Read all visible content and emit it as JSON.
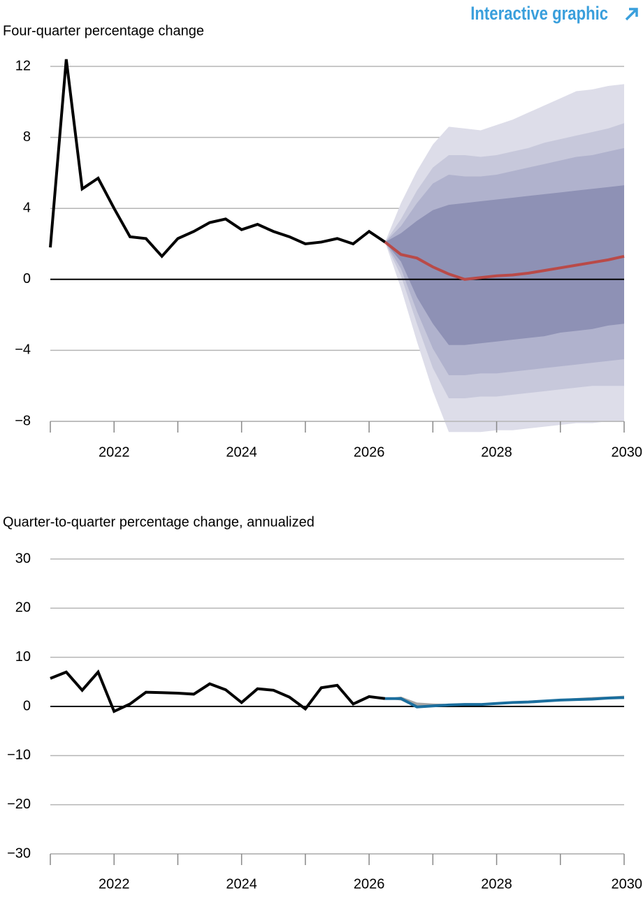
{
  "header": {
    "link": "Interactive graphic"
  },
  "chart_data": [
    {
      "type": "fan",
      "title": "Four-quarter percentage change",
      "xlim": [
        2021,
        2030
      ],
      "xticks": [
        2022,
        2024,
        2026,
        2028,
        2030
      ],
      "xminorticks": [
        2021,
        2023,
        2025,
        2027,
        2029
      ],
      "ylim": [
        -8,
        12
      ],
      "yticks": [
        12,
        8,
        4,
        0,
        {
          "value": -4,
          "label": "−4"
        },
        {
          "value": -8,
          "label": "−8"
        }
      ],
      "grid": true,
      "bands": [
        {
          "color": "#dddde9",
          "x": [
            2026.25,
            2026.5,
            2026.75,
            2027,
            2027.25,
            2027.5,
            2027.75,
            2028,
            2028.25,
            2028.5,
            2028.75,
            2029,
            2029.25,
            2029.5,
            2029.75,
            2030
          ],
          "upper": [
            2.1,
            4.3,
            6.1,
            7.6,
            8.6,
            8.5,
            8.4,
            8.7,
            9.0,
            9.4,
            9.8,
            10.2,
            10.6,
            10.7,
            10.9,
            11.0
          ],
          "lower": [
            2.1,
            -0.5,
            -3.5,
            -6.3,
            -8.6,
            -8.6,
            -8.6,
            -8.5,
            -8.5,
            -8.4,
            -8.3,
            -8.2,
            -8.1,
            -8.1,
            -8.0,
            -8.0
          ]
        },
        {
          "color": "#c7c8db",
          "x": [
            2026.25,
            2026.5,
            2026.75,
            2027,
            2027.25,
            2027.5,
            2027.75,
            2028,
            2028.25,
            2028.5,
            2028.75,
            2029,
            2029.25,
            2029.5,
            2029.75,
            2030
          ],
          "upper": [
            2.1,
            3.4,
            5.0,
            6.3,
            7.0,
            7.0,
            6.9,
            7.0,
            7.2,
            7.4,
            7.7,
            7.9,
            8.1,
            8.3,
            8.5,
            8.8
          ],
          "lower": [
            2.1,
            0.2,
            -2.5,
            -5.0,
            -6.7,
            -6.7,
            -6.6,
            -6.6,
            -6.5,
            -6.4,
            -6.3,
            -6.2,
            -6.1,
            -6.0,
            -6.0,
            -6.0
          ]
        },
        {
          "color": "#b0b2cd",
          "x": [
            2026.25,
            2026.5,
            2026.75,
            2027,
            2027.25,
            2027.5,
            2027.75,
            2028,
            2028.25,
            2028.5,
            2028.75,
            2029,
            2029.25,
            2029.5,
            2029.75,
            2030
          ],
          "upper": [
            2.1,
            3.0,
            4.3,
            5.4,
            5.9,
            5.8,
            5.8,
            5.9,
            6.1,
            6.3,
            6.5,
            6.7,
            6.9,
            7.0,
            7.2,
            7.4
          ],
          "lower": [
            2.1,
            0.6,
            -1.8,
            -3.9,
            -5.4,
            -5.4,
            -5.3,
            -5.3,
            -5.2,
            -5.1,
            -5.0,
            -4.9,
            -4.8,
            -4.7,
            -4.6,
            -4.5
          ]
        },
        {
          "color": "#8e91b5",
          "x": [
            2026.25,
            2026.5,
            2026.75,
            2027,
            2027.25,
            2027.5,
            2027.75,
            2028,
            2028.25,
            2028.5,
            2028.75,
            2029,
            2029.25,
            2029.5,
            2029.75,
            2030
          ],
          "upper": [
            2.1,
            2.6,
            3.3,
            3.9,
            4.2,
            4.3,
            4.4,
            4.5,
            4.6,
            4.7,
            4.8,
            4.9,
            5.0,
            5.1,
            5.2,
            5.3
          ],
          "lower": [
            2.1,
            1.0,
            -1.0,
            -2.5,
            -3.7,
            -3.7,
            -3.6,
            -3.5,
            -3.4,
            -3.3,
            -3.2,
            -3.0,
            -2.9,
            -2.8,
            -2.6,
            -2.5
          ]
        }
      ],
      "series": [
        {
          "color": "#000000",
          "x": [
            2021,
            2021.25,
            2021.5,
            2021.75,
            2022,
            2022.25,
            2022.5,
            2022.75,
            2023,
            2023.25,
            2023.5,
            2023.75,
            2024,
            2024.25,
            2024.5,
            2024.75,
            2025,
            2025.25,
            2025.5,
            2025.75,
            2026,
            2026.25
          ],
          "values": [
            1.8,
            12.4,
            5.1,
            5.7,
            4.0,
            2.4,
            2.3,
            1.3,
            2.3,
            2.7,
            3.2,
            3.4,
            2.8,
            3.1,
            2.7,
            2.4,
            2.0,
            2.1,
            2.3,
            2.0,
            2.7,
            2.1
          ]
        },
        {
          "color": "#b94a48",
          "x": [
            2026.25,
            2026.5,
            2026.75,
            2027,
            2027.25,
            2027.5,
            2027.75,
            2028,
            2028.25,
            2028.5,
            2028.75,
            2029,
            2029.25,
            2029.5,
            2029.75,
            2030
          ],
          "values": [
            2.1,
            1.4,
            1.2,
            0.7,
            0.3,
            0.0,
            0.1,
            0.2,
            0.25,
            0.35,
            0.5,
            0.65,
            0.8,
            0.95,
            1.1,
            1.3
          ]
        }
      ]
    },
    {
      "type": "fan",
      "title": "Quarter-to-quarter percentage change, annualized",
      "xlim": [
        2021,
        2030
      ],
      "xticks": [
        2022,
        2024,
        2026,
        2028,
        2030
      ],
      "xminorticks": [
        2021,
        2023,
        2025,
        2027,
        2029
      ],
      "ylim": [
        -30,
        30
      ],
      "yticks": [
        30,
        20,
        10,
        0,
        {
          "value": -10,
          "label": "−10"
        },
        {
          "value": -20,
          "label": "−20"
        },
        {
          "value": -30,
          "label": "−30"
        }
      ],
      "grid": true,
      "bands": [
        {
          "color": "#a6a6a6",
          "x": [
            2026.25,
            2026.5,
            2026.75,
            2027,
            2027.25,
            2027.5,
            2027.75,
            2028,
            2028.25,
            2028.5,
            2028.75,
            2029,
            2029.25,
            2029.5,
            2029.75,
            2030
          ],
          "upper": [
            1.6,
            2.0,
            0.8,
            0.6,
            0.5,
            0.5,
            0.5,
            0.7,
            0.9,
            1.1,
            1.3,
            1.5,
            1.7,
            1.9,
            2.0,
            2.2
          ],
          "lower": [
            1.6,
            1.2,
            -0.3,
            0.0,
            0.2,
            0.3,
            0.3,
            0.5,
            0.7,
            0.8,
            1.0,
            1.2,
            1.3,
            1.4,
            1.5,
            1.6
          ]
        }
      ],
      "series": [
        {
          "color": "#000000",
          "x": [
            2021,
            2021.25,
            2021.5,
            2021.75,
            2022,
            2022.25,
            2022.5,
            2022.75,
            2023,
            2023.25,
            2023.5,
            2023.75,
            2024,
            2024.25,
            2024.5,
            2024.75,
            2025,
            2025.25,
            2025.5,
            2025.75,
            2026,
            2026.25
          ],
          "values": [
            5.7,
            7.0,
            3.3,
            7.0,
            -1.0,
            0.5,
            2.9,
            2.8,
            2.7,
            2.5,
            4.6,
            3.4,
            0.8,
            3.6,
            3.3,
            1.9,
            -0.5,
            3.8,
            4.3,
            0.5,
            2.0,
            1.6
          ]
        },
        {
          "color": "#1a6e9e",
          "x": [
            2026.25,
            2026.5,
            2026.75,
            2027,
            2027.25,
            2027.5,
            2027.75,
            2028,
            2028.25,
            2028.5,
            2028.75,
            2029,
            2029.25,
            2029.5,
            2029.75,
            2030
          ],
          "values": [
            1.6,
            1.6,
            -0.1,
            0.1,
            0.3,
            0.4,
            0.4,
            0.6,
            0.8,
            0.9,
            1.1,
            1.3,
            1.4,
            1.5,
            1.7,
            1.8
          ]
        }
      ]
    }
  ]
}
